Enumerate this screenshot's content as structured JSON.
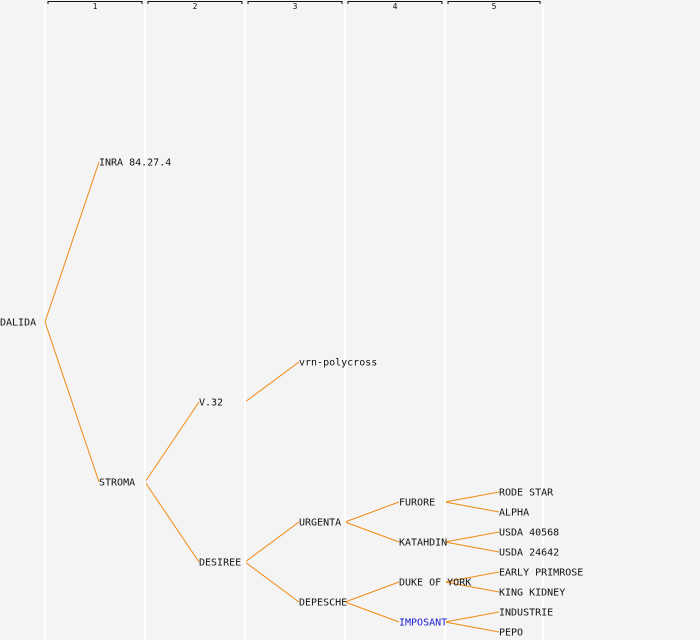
{
  "colors": {
    "background": "#f4f4f4",
    "edge": "#f08a12",
    "text": "#111111",
    "highlight": "#1a1acc"
  },
  "generations": [
    "1",
    "2",
    "3",
    "4",
    "5"
  ],
  "tree": {
    "label": "DALIDA",
    "children": [
      {
        "label": "INRA 84.27.4"
      },
      {
        "label": "STROMA",
        "children": [
          {
            "label": "V.32",
            "children": [
              {
                "label": "vrn-polycross"
              }
            ]
          },
          {
            "label": "DESIREE",
            "children": [
              {
                "label": "URGENTA",
                "children": [
                  {
                    "label": "FURORE",
                    "children": [
                      {
                        "label": "RODE STAR"
                      },
                      {
                        "label": "ALPHA"
                      }
                    ]
                  },
                  {
                    "label": "KATAHDIN",
                    "children": [
                      {
                        "label": "USDA 40568"
                      },
                      {
                        "label": "USDA 24642"
                      }
                    ]
                  }
                ]
              },
              {
                "label": "DEPESCHE",
                "children": [
                  {
                    "label": "DUKE OF YORK",
                    "children": [
                      {
                        "label": "EARLY PRIMROSE"
                      },
                      {
                        "label": "KING KIDNEY"
                      }
                    ]
                  },
                  {
                    "label": "IMPOSANT",
                    "highlight": true,
                    "children": [
                      {
                        "label": "INDUSTRIE"
                      },
                      {
                        "label": "PEPO"
                      }
                    ]
                  }
                ]
              }
            ]
          }
        ]
      }
    ]
  }
}
